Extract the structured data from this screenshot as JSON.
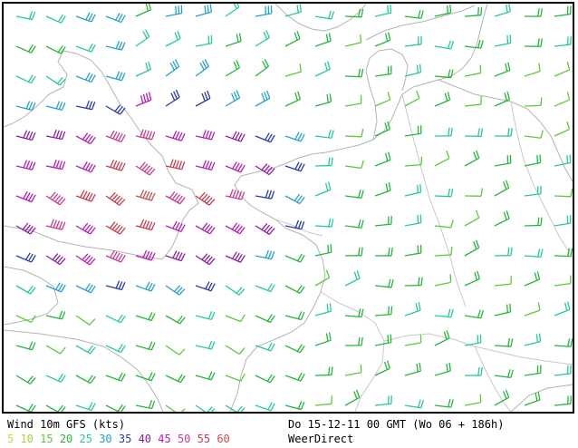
{
  "legend": {
    "title": "Wind 10m GFS (kts)",
    "time": "Do 15-12-11 00 GMT (Wo 06 + 186h)",
    "source": "WeerDirect",
    "speed_scale": [
      {
        "label": "5",
        "color": "#d4d430"
      },
      {
        "label": "10",
        "color": "#a8d43c"
      },
      {
        "label": "15",
        "color": "#5ec83c"
      },
      {
        "label": "20",
        "color": "#28b43c"
      },
      {
        "label": "25",
        "color": "#28c8a0"
      },
      {
        "label": "30",
        "color": "#28a0c8"
      },
      {
        "label": "35",
        "color": "#283ca0"
      },
      {
        "label": "40",
        "color": "#8c1ea0"
      },
      {
        "label": "45",
        "color": "#b41eb4"
      },
      {
        "label": "50",
        "color": "#c83c8c"
      },
      {
        "label": "55",
        "color": "#c83c50"
      },
      {
        "label": "60",
        "color": "#c85050"
      }
    ]
  },
  "map": {
    "coast_color": "#b4b4b4",
    "frame_color": "#000000"
  }
}
